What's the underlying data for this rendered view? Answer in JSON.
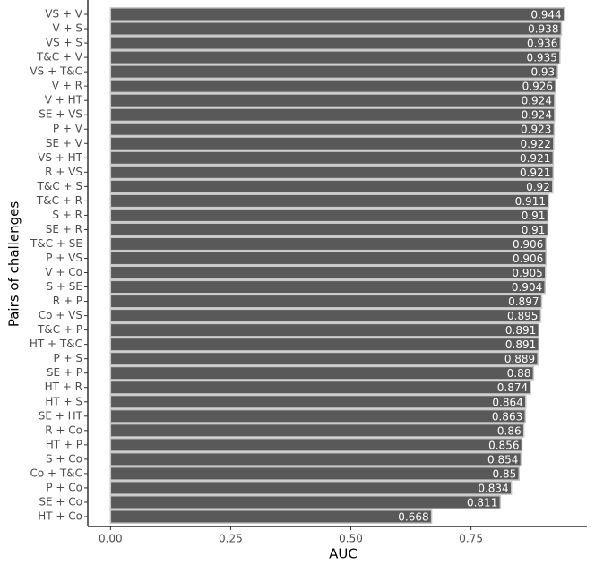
{
  "chart_data": {
    "type": "bar",
    "orientation": "horizontal",
    "x_label": "AUC",
    "y_label": "Pairs of challenges",
    "categories": [
      "VS + V",
      "V + S",
      "VS + S",
      "T&C + V",
      "VS + T&C",
      "V + R",
      "V + HT",
      "SE + VS",
      "P + V",
      "SE + V",
      "VS + HT",
      "R + VS",
      "T&C + S",
      "T&C + R",
      "S + R",
      "SE + R",
      "T&C + SE",
      "P + VS",
      "V + Co",
      "S + SE",
      "R + P",
      "Co + VS",
      "T&C + P",
      "HT + T&C",
      "P + S",
      "SE + P",
      "HT + R",
      "HT + S",
      "SE + HT",
      "R + Co",
      "HT + P",
      "S + Co",
      "Co + T&C",
      "P + Co",
      "SE + Co",
      "HT + Co"
    ],
    "values": [
      0.944,
      0.938,
      0.936,
      0.935,
      0.93,
      0.926,
      0.924,
      0.924,
      0.923,
      0.922,
      0.921,
      0.921,
      0.92,
      0.911,
      0.91,
      0.91,
      0.906,
      0.906,
      0.905,
      0.904,
      0.897,
      0.895,
      0.891,
      0.891,
      0.889,
      0.88,
      0.874,
      0.864,
      0.863,
      0.86,
      0.856,
      0.854,
      0.85,
      0.834,
      0.811,
      0.668
    ],
    "color": "#595959",
    "xlim": [
      -0.0472,
      0.9912
    ],
    "xticks": [
      {
        "value": 0,
        "label": "0.00"
      },
      0.25,
      {
        "value": 0.5,
        "label": "0.50"
      },
      0.75
    ],
    "grid": false
  }
}
